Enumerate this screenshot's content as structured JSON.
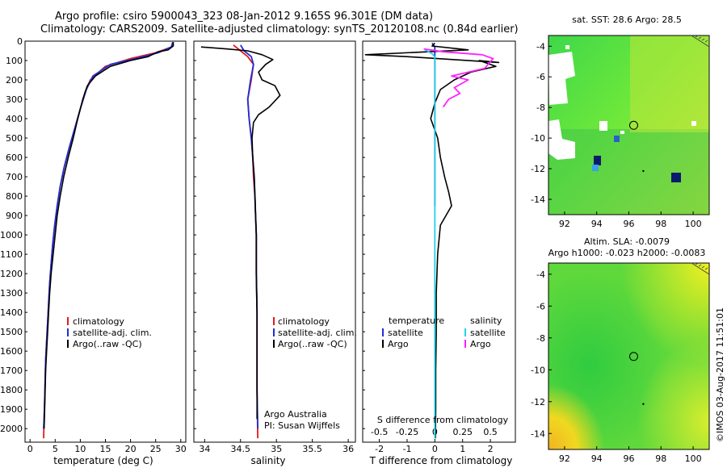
{
  "header": {
    "title_line1": "Argo profile: csiro 5900043_323 08-Jan-2012 9.165S 96.301E (DM data)",
    "title_line2": "Climatology: CARS2009. Satellite-adjusted climatology: synTS_20120108.nc (0.84d earlier)"
  },
  "colors": {
    "climatology": "#e31a1c",
    "satellite": "#1f2fd6",
    "argo": "#000000",
    "sal_satellite": "#22d3e6",
    "sal_argo": "#ff22ff"
  },
  "chart_data": [
    {
      "type": "line",
      "id": "temperature",
      "xlabel": "temperature (deg C)",
      "xlim": [
        -1,
        31
      ],
      "xticks": [
        0,
        5,
        10,
        15,
        20,
        25,
        30
      ],
      "ylim": [
        2070,
        0
      ],
      "yticks": [
        0,
        100,
        200,
        300,
        400,
        500,
        600,
        700,
        800,
        900,
        1000,
        1100,
        1200,
        1300,
        1400,
        1500,
        1600,
        1700,
        1800,
        1900,
        2000
      ],
      "legend": [
        "climatology",
        "satellite-adj. clim.",
        "Argo(..raw -QC)"
      ],
      "series": [
        {
          "name": "climatology",
          "color_key": "climatology",
          "points": [
            [
              28.5,
              5
            ],
            [
              28.2,
              30
            ],
            [
              25,
              60
            ],
            [
              20,
              90
            ],
            [
              15,
              130
            ],
            [
              12,
              200
            ],
            [
              11,
              260
            ],
            [
              10,
              350
            ],
            [
              8.9,
              450
            ],
            [
              7.8,
              550
            ],
            [
              6.8,
              650
            ],
            [
              6,
              750
            ],
            [
              5.4,
              850
            ],
            [
              4.9,
              950
            ],
            [
              4.5,
              1050
            ],
            [
              4.2,
              1150
            ],
            [
              3.9,
              1250
            ],
            [
              3.7,
              1350
            ],
            [
              3.5,
              1450
            ],
            [
              3.3,
              1550
            ],
            [
              3.1,
              1650
            ],
            [
              3,
              1750
            ],
            [
              2.9,
              1850
            ],
            [
              2.8,
              1950
            ],
            [
              2.7,
              2050
            ]
          ]
        },
        {
          "name": "satellite-adj. clim.",
          "color_key": "satellite",
          "points": [
            [
              28.4,
              5
            ],
            [
              28.1,
              30
            ],
            [
              25.5,
              60
            ],
            [
              21,
              90
            ],
            [
              16,
              120
            ],
            [
              12.5,
              180
            ],
            [
              11.2,
              250
            ],
            [
              10,
              350
            ],
            [
              8.9,
              450
            ],
            [
              7.8,
              550
            ],
            [
              6.8,
              650
            ],
            [
              6,
              750
            ],
            [
              5.4,
              850
            ],
            [
              4.9,
              950
            ],
            [
              4.5,
              1050
            ],
            [
              4.2,
              1150
            ],
            [
              3.9,
              1250
            ],
            [
              3.7,
              1350
            ],
            [
              3.5,
              1450
            ],
            [
              3.3,
              1550
            ],
            [
              3.1,
              1650
            ],
            [
              3,
              1750
            ],
            [
              2.9,
              1850
            ],
            [
              2.8,
              1950
            ],
            [
              2.7,
              2000
            ]
          ]
        },
        {
          "name": "Argo(..raw -QC)",
          "color_key": "argo",
          "points": [
            [
              28.5,
              5
            ],
            [
              28.5,
              25
            ],
            [
              27.5,
              45
            ],
            [
              25.5,
              55
            ],
            [
              23.5,
              80
            ],
            [
              20,
              100
            ],
            [
              16,
              130
            ],
            [
              13,
              180
            ],
            [
              11.4,
              230
            ],
            [
              10.5,
              300
            ],
            [
              9.5,
              400
            ],
            [
              8.6,
              500
            ],
            [
              7.6,
              600
            ],
            [
              6.7,
              700
            ],
            [
              6,
              800
            ],
            [
              5.4,
              900
            ],
            [
              5,
              1000
            ],
            [
              4.6,
              1100
            ],
            [
              4.2,
              1200
            ],
            [
              3.9,
              1300
            ],
            [
              3.7,
              1400
            ],
            [
              3.5,
              1500
            ],
            [
              3.3,
              1600
            ],
            [
              3.1,
              1700
            ],
            [
              3,
              1800
            ],
            [
              2.9,
              1900
            ],
            [
              2.8,
              2000
            ]
          ]
        }
      ]
    },
    {
      "type": "line",
      "id": "salinity",
      "xlabel": "salinity",
      "xlim": [
        33.85,
        36.1
      ],
      "xticks": [
        34,
        34.5,
        35,
        35.5,
        36
      ],
      "ylim": [
        2070,
        0
      ],
      "legend": [
        "climatology",
        "satellite-adj. clim.",
        "Argo(..raw -QC)"
      ],
      "annotation_line1": "Argo Australia",
      "annotation_line2": "PI: Susan Wijffels",
      "series": [
        {
          "name": "climatology",
          "color_key": "climatology",
          "points": [
            [
              34.4,
              20
            ],
            [
              34.5,
              50
            ],
            [
              34.6,
              80
            ],
            [
              34.68,
              120
            ],
            [
              34.65,
              200
            ],
            [
              34.6,
              300
            ],
            [
              34.62,
              400
            ],
            [
              34.65,
              500
            ],
            [
              34.67,
              600
            ],
            [
              34.68,
              700
            ],
            [
              34.7,
              800
            ],
            [
              34.71,
              900
            ],
            [
              34.72,
              1000
            ],
            [
              34.72,
              1200
            ],
            [
              34.73,
              1400
            ],
            [
              34.73,
              1600
            ],
            [
              34.73,
              1800
            ],
            [
              34.74,
              2050
            ]
          ]
        },
        {
          "name": "satellite-adj. clim.",
          "color_key": "satellite",
          "points": [
            [
              34.5,
              20
            ],
            [
              34.55,
              50
            ],
            [
              34.65,
              80
            ],
            [
              34.68,
              120
            ],
            [
              34.64,
              200
            ],
            [
              34.6,
              300
            ],
            [
              34.62,
              400
            ],
            [
              34.65,
              500
            ],
            [
              34.67,
              600
            ],
            [
              34.69,
              700
            ],
            [
              34.7,
              800
            ],
            [
              34.71,
              900
            ],
            [
              34.72,
              1000
            ],
            [
              34.72,
              1200
            ],
            [
              34.73,
              1400
            ],
            [
              34.73,
              1600
            ],
            [
              34.73,
              1800
            ],
            [
              34.74,
              2000
            ]
          ]
        },
        {
          "name": "Argo(..raw -QC)",
          "color_key": "argo",
          "points": [
            [
              33.95,
              30
            ],
            [
              34.3,
              40
            ],
            [
              34.6,
              50
            ],
            [
              34.8,
              70
            ],
            [
              34.95,
              95
            ],
            [
              34.85,
              120
            ],
            [
              34.75,
              160
            ],
            [
              34.8,
              200
            ],
            [
              34.98,
              230
            ],
            [
              35.05,
              280
            ],
            [
              34.9,
              340
            ],
            [
              34.75,
              380
            ],
            [
              34.68,
              420
            ],
            [
              34.66,
              500
            ],
            [
              34.67,
              600
            ],
            [
              34.69,
              700
            ],
            [
              34.7,
              800
            ],
            [
              34.71,
              900
            ],
            [
              34.72,
              1000
            ],
            [
              34.72,
              1200
            ],
            [
              34.73,
              1400
            ],
            [
              34.73,
              1600
            ],
            [
              34.73,
              1800
            ],
            [
              34.73,
              1950
            ]
          ]
        }
      ]
    },
    {
      "type": "line",
      "id": "difference",
      "xlabel": "T difference from climatology",
      "secondary_xlabel": "S difference from climatology",
      "xlim": [
        -2.6,
        2.9
      ],
      "xticks": [
        -2,
        -1,
        0,
        1,
        2
      ],
      "secondary_xticks": [
        {
          "label": "-0.5",
          "x": -2
        },
        {
          "label": "-0.25",
          "x": -1
        },
        {
          "label": "0",
          "x": 0
        },
        {
          "label": "0.25",
          "x": 1
        },
        {
          "label": "0.5",
          "x": 2
        }
      ],
      "ylim": [
        2070,
        0
      ],
      "legend_temperature_title": "temperature",
      "legend_salinity_title": "salinity",
      "legend_satellite": "satellite",
      "legend_argo": "Argo",
      "series": [
        {
          "name": "temperature satellite",
          "color_key": "satellite",
          "points": [
            [
              -0.1,
              10
            ],
            [
              0,
              30
            ],
            [
              0,
              100
            ],
            [
              0,
              300
            ],
            [
              0,
              500
            ],
            [
              0,
              700
            ],
            [
              0,
              850
            ]
          ]
        },
        {
          "name": "temperature Argo",
          "color_key": "argo",
          "points": [
            [
              0,
              10
            ],
            [
              -0.1,
              25
            ],
            [
              1.2,
              45
            ],
            [
              -2.5,
              70
            ],
            [
              -1,
              80
            ],
            [
              2.3,
              110
            ],
            [
              1.6,
              100
            ],
            [
              2.2,
              130
            ],
            [
              1.3,
              160
            ],
            [
              0.7,
              200
            ],
            [
              0.2,
              250
            ],
            [
              0,
              320
            ],
            [
              -0.15,
              400
            ],
            [
              0.1,
              500
            ],
            [
              0.2,
              600
            ],
            [
              0.35,
              700
            ],
            [
              0.5,
              780
            ],
            [
              0.6,
              850
            ],
            [
              0.4,
              900
            ],
            [
              0.2,
              950
            ],
            [
              0.1,
              1100
            ],
            [
              0.05,
              1300
            ],
            [
              0.05,
              1500
            ],
            [
              0.03,
              1700
            ],
            [
              0.03,
              1900
            ],
            [
              0.02,
              2050
            ]
          ]
        },
        {
          "name": "salinity satellite",
          "color_key": "sal_satellite",
          "points": [
            [
              -0.35,
              45
            ],
            [
              -0.1,
              65
            ],
            [
              0,
              80
            ],
            [
              0,
              100
            ],
            [
              0,
              150
            ],
            [
              0,
              300
            ],
            [
              0,
              600
            ],
            [
              0,
              1000
            ],
            [
              0,
              1400
            ],
            [
              0,
              1800
            ],
            [
              0,
              2050
            ]
          ]
        },
        {
          "name": "salinity Argo",
          "color_key": "sal_argo",
          "points": [
            [
              -0.4,
              40
            ],
            [
              0.3,
              55
            ],
            [
              1.7,
              70
            ],
            [
              2.1,
              90
            ],
            [
              1.8,
              140
            ],
            [
              0.6,
              180
            ],
            [
              1.2,
              200
            ],
            [
              0.7,
              240
            ],
            [
              0.9,
              270
            ],
            [
              0.5,
              300
            ],
            [
              0.3,
              340
            ]
          ]
        }
      ]
    },
    {
      "type": "heatmap",
      "id": "sst-map",
      "title": "sat. SST: 28.6  Argo: 28.5",
      "xlim": [
        91,
        101
      ],
      "ylim": [
        -15,
        -3.3
      ],
      "xticks": [
        92,
        94,
        96,
        98,
        100
      ],
      "yticks": [
        -4,
        -6,
        -8,
        -10,
        -12,
        -14
      ],
      "argo_position": [
        96.3,
        -9.165
      ]
    },
    {
      "type": "heatmap",
      "id": "sla-map",
      "title_line1": "Altim. SLA: -0.0079",
      "title_line2": "Argo h1000: -0.023 h2000: -0.0083",
      "xlim": [
        91,
        101
      ],
      "ylim": [
        -15,
        -3.3
      ],
      "xticks": [
        92,
        94,
        96,
        98,
        100
      ],
      "yticks": [
        -4,
        -6,
        -8,
        -10,
        -12,
        -14
      ],
      "argo_position": [
        96.3,
        -9.165
      ]
    }
  ],
  "footer": {
    "side_credit": "©IMOS 03-Aug-2017 11:51:01"
  }
}
